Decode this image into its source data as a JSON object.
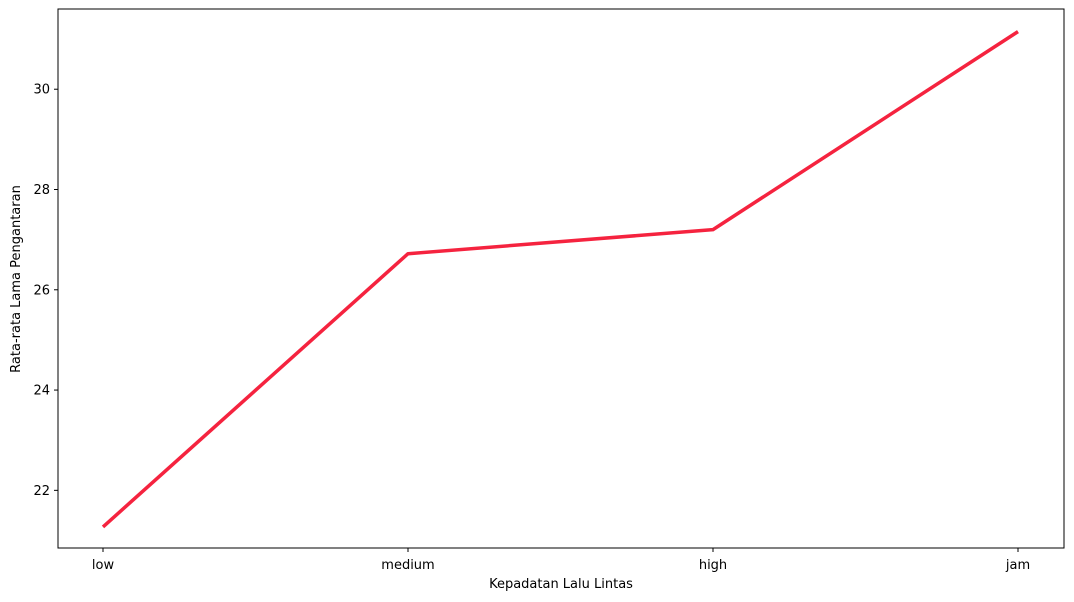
{
  "chart_data": {
    "type": "line",
    "title": "",
    "xlabel": "Kepadatan Lalu Lintas",
    "ylabel": "Rata-rata Lama Pengantaran",
    "categories": [
      "low",
      "medium",
      "high",
      "jam"
    ],
    "series": [
      {
        "values": [
          21.27,
          26.72,
          27.2,
          31.15
        ],
        "color": "#f5233f"
      }
    ],
    "ylim": [
      20.85,
      31.6
    ],
    "yticks": [
      22,
      24,
      26,
      28,
      30
    ],
    "ytick_labels": [
      "22",
      "24",
      "26",
      "28",
      "30"
    ],
    "grid": false,
    "legend": "none"
  }
}
